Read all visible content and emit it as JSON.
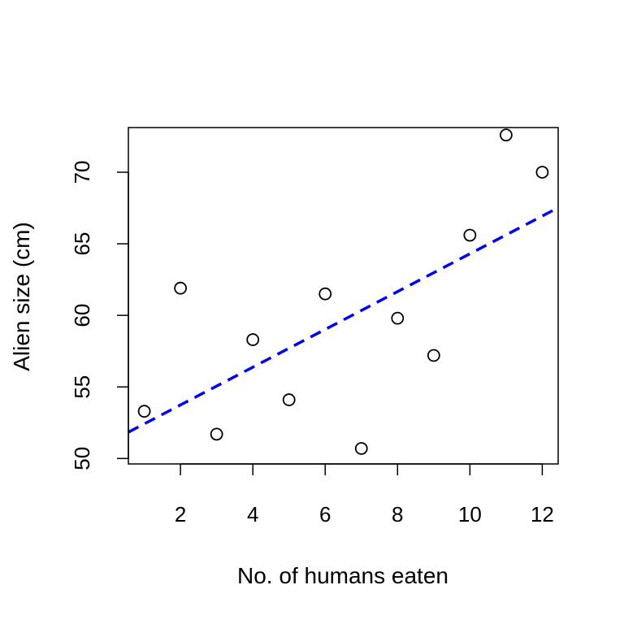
{
  "chart_data": {
    "type": "scatter",
    "title": "",
    "xlabel": "No. of humans eaten",
    "ylabel": "Alien size (cm)",
    "xlim": [
      0.56,
      12.44
    ],
    "ylim": [
      49.62,
      73.12
    ],
    "x_ticks": [
      2,
      4,
      6,
      8,
      10,
      12
    ],
    "x_tick_labels": [
      "2",
      "4",
      "6",
      "8",
      "10",
      "12"
    ],
    "y_ticks": [
      50,
      55,
      60,
      65,
      70
    ],
    "y_tick_labels": [
      "50",
      "55",
      "60",
      "65",
      "70"
    ],
    "grid": false,
    "legend": "none",
    "points": [
      {
        "x": 1,
        "y": 53.3
      },
      {
        "x": 2,
        "y": 61.9
      },
      {
        "x": 3,
        "y": 51.7
      },
      {
        "x": 4,
        "y": 58.3
      },
      {
        "x": 5,
        "y": 54.1
      },
      {
        "x": 6,
        "y": 61.5
      },
      {
        "x": 7,
        "y": 50.7
      },
      {
        "x": 8,
        "y": 59.8
      },
      {
        "x": 9,
        "y": 57.2
      },
      {
        "x": 10,
        "y": 65.6
      },
      {
        "x": 11,
        "y": 72.6
      },
      {
        "x": 12,
        "y": 70.0
      }
    ],
    "regression_line": {
      "intercept": 51.1,
      "slope": 1.32,
      "color": "#0000EE",
      "style": "dashed"
    },
    "point_style": {
      "shape": "open-circle",
      "stroke": "#000000"
    }
  }
}
